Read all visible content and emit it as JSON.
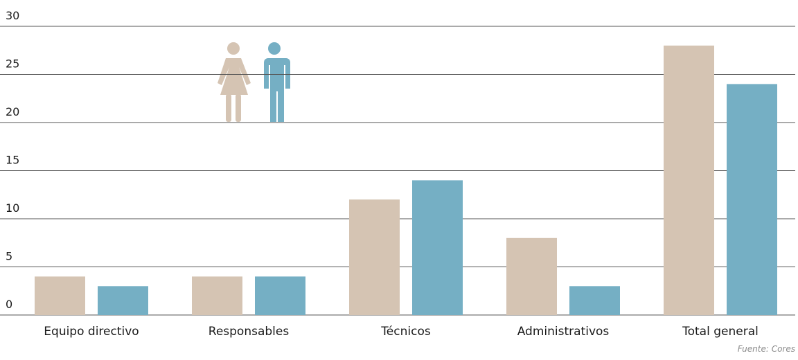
{
  "chart_data": {
    "type": "bar",
    "categories": [
      "Equipo directivo",
      "Responsables",
      "Técnicos",
      "Administrativos",
      "Total general"
    ],
    "series": [
      {
        "color": "#d5c4b3",
        "values": [
          4,
          4,
          12,
          8,
          28
        ]
      },
      {
        "color": "#75afc4",
        "values": [
          3,
          4,
          14,
          3,
          24
        ]
      }
    ],
    "ylim": [
      0,
      30
    ],
    "yticks": [
      0,
      5,
      10,
      15,
      20,
      25,
      30
    ],
    "grid": true,
    "source": "Fuente: Cores"
  }
}
